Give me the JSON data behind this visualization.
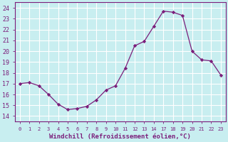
{
  "hours": [
    0,
    1,
    2,
    3,
    4,
    5,
    6,
    7,
    8,
    9,
    10,
    11,
    12,
    13,
    14,
    17,
    18,
    19,
    20,
    21,
    22,
    23
  ],
  "y": [
    17.0,
    17.1,
    16.8,
    16.0,
    15.1,
    14.6,
    14.7,
    14.9,
    15.5,
    16.4,
    16.8,
    18.4,
    20.5,
    20.9,
    22.3,
    23.7,
    23.6,
    23.3,
    20.0,
    19.2,
    19.1,
    17.8
  ],
  "line_color": "#7B1E7B",
  "marker_color": "#7B1E7B",
  "bg_color": "#c8eef0",
  "grid_color": "#b0dce0",
  "ylabel_ticks": [
    14,
    15,
    16,
    17,
    18,
    19,
    20,
    21,
    22,
    23,
    24
  ],
  "xlabel": "Windchill (Refroidissement éolien,°C)",
  "ylim": [
    13.5,
    24.5
  ],
  "font_color": "#7B1E7B"
}
